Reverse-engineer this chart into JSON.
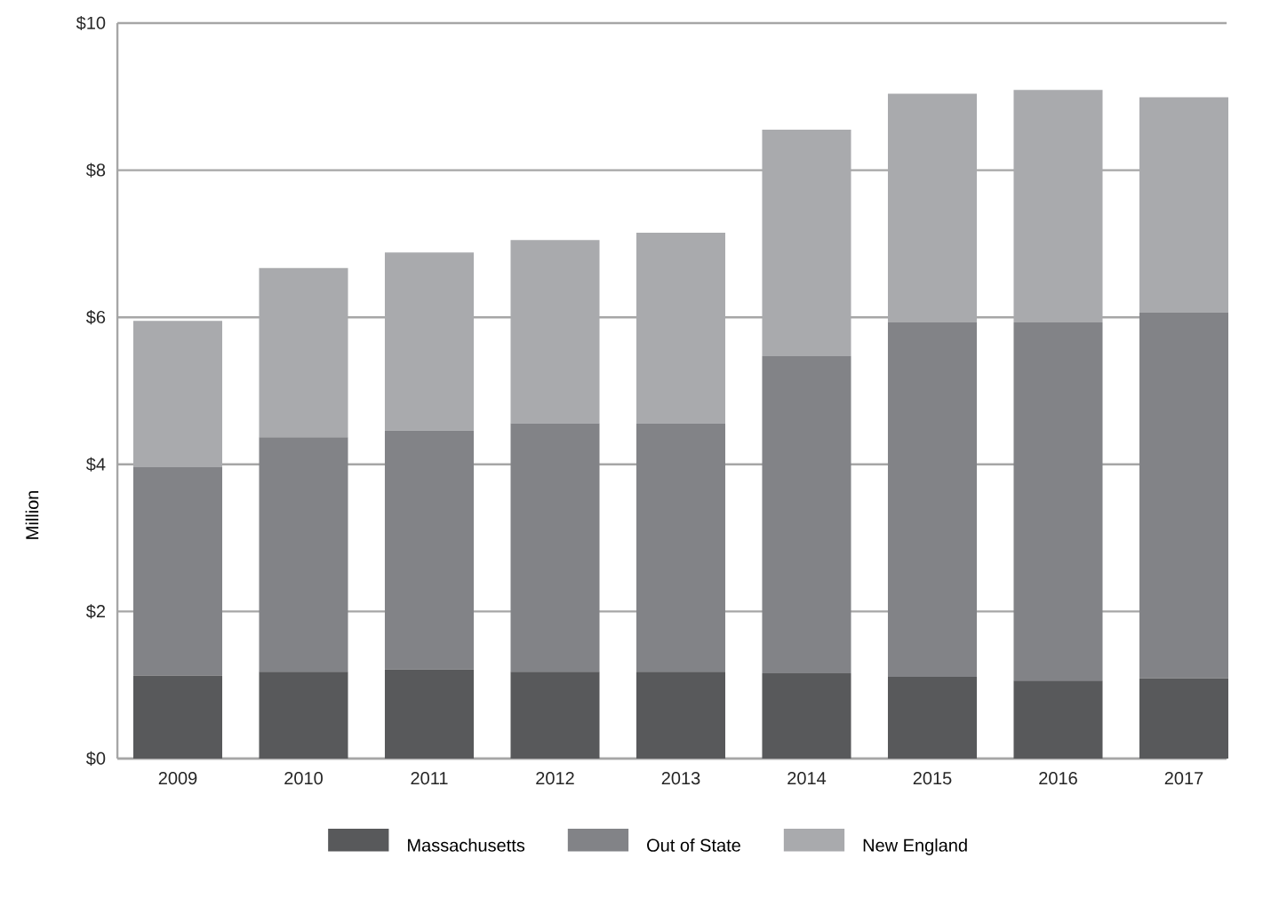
{
  "chart_data": {
    "type": "bar",
    "stacked": true,
    "ylabel": "Million",
    "categories": [
      "2009",
      "2010",
      "2011",
      "2012",
      "2013",
      "2014",
      "2015",
      "2016",
      "2017"
    ],
    "series": [
      {
        "name": "Massachusetts",
        "color": "#58595b",
        "values": [
          1.13,
          1.18,
          1.21,
          1.18,
          1.18,
          1.16,
          1.11,
          1.06,
          1.09
        ]
      },
      {
        "name": "Out of State",
        "color": "#828387",
        "values": [
          2.83,
          3.19,
          3.25,
          3.38,
          3.38,
          4.31,
          4.82,
          4.87,
          4.98
        ]
      },
      {
        "name": "New England",
        "color": "#a9aaad",
        "values": [
          1.99,
          2.3,
          2.42,
          2.49,
          2.59,
          3.08,
          3.11,
          3.16,
          2.92
        ]
      }
    ],
    "ylim": [
      0,
      10
    ],
    "yticks": [
      {
        "value": 0,
        "label": "$0"
      },
      {
        "value": 2,
        "label": "$2"
      },
      {
        "value": 4,
        "label": "$4"
      },
      {
        "value": 6,
        "label": "$6"
      },
      {
        "value": 8,
        "label": "$8"
      },
      {
        "value": 10,
        "label": "$10"
      }
    ],
    "grid": "y",
    "legend": "bottom"
  }
}
